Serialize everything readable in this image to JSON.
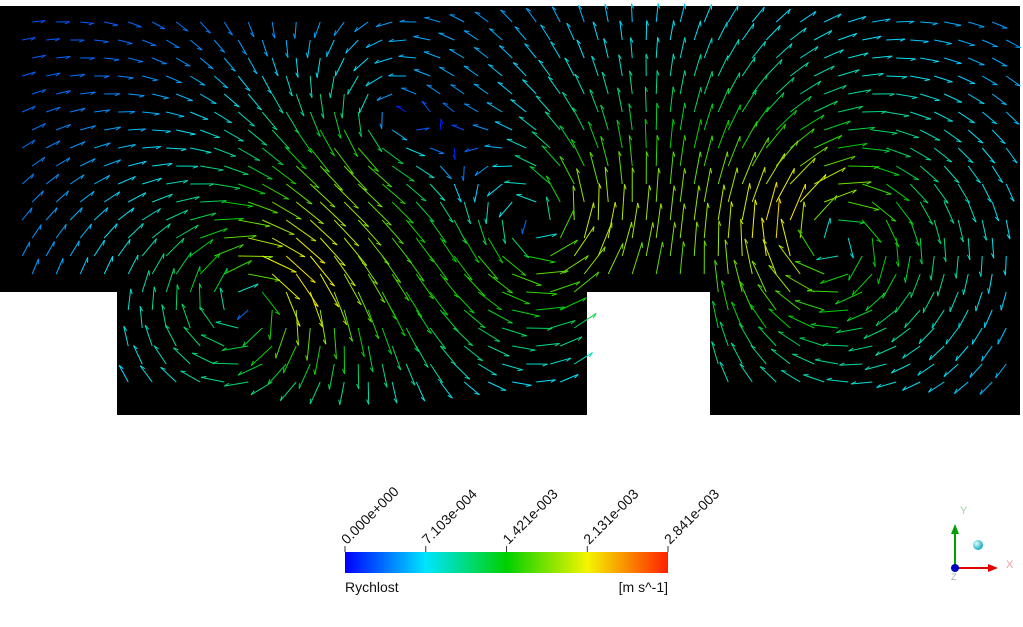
{
  "legend": {
    "title": "Rychlost",
    "unit": "[m s^-1]",
    "range": [
      0,
      0.002841
    ],
    "ticks": [
      {
        "value": 0,
        "label": "0.000e+000"
      },
      {
        "value": 0.0007103,
        "label": "7.103e-004"
      },
      {
        "value": 0.001421,
        "label": "1.421e-003"
      },
      {
        "value": 0.002131,
        "label": "2.131e-003"
      },
      {
        "value": 0.002841,
        "label": "2.841e-003"
      }
    ]
  },
  "triad": {
    "x": "X",
    "y": "Y",
    "z": "Z"
  }
}
